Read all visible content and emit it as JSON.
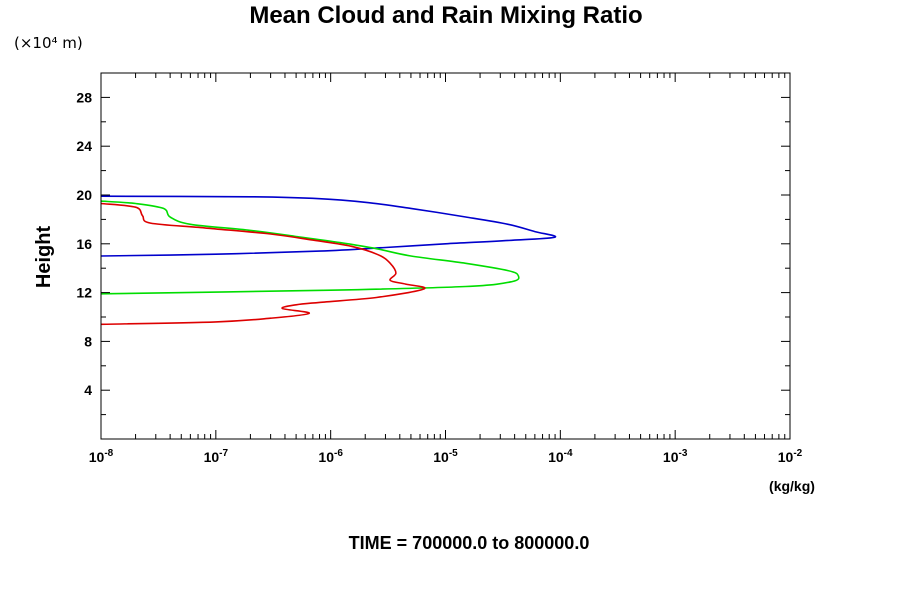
{
  "chart_data": {
    "type": "line",
    "title": "Mean Cloud and Rain Mixing Ratio",
    "y_scale_note": "(×10⁴ m)",
    "ylabel": "Height",
    "xlabel": "(kg/kg)",
    "time_label": "TIME = 700000.0 to 800000.0",
    "x_scale": "log",
    "xlim": [
      1e-08,
      0.01
    ],
    "ylim": [
      0,
      30
    ],
    "x_ticks": [
      {
        "value": 1e-08,
        "base": "10",
        "exp": "-8"
      },
      {
        "value": 1e-07,
        "base": "10",
        "exp": "-7"
      },
      {
        "value": 1e-06,
        "base": "10",
        "exp": "-6"
      },
      {
        "value": 1e-05,
        "base": "10",
        "exp": "-5"
      },
      {
        "value": 0.0001,
        "base": "10",
        "exp": "-4"
      },
      {
        "value": 0.001,
        "base": "10",
        "exp": "-3"
      },
      {
        "value": 0.01,
        "base": "10",
        "exp": "-2"
      }
    ],
    "y_ticks": [
      4,
      8,
      12,
      16,
      20,
      24,
      28
    ],
    "grid": false,
    "series": [
      {
        "color": "#0000cc",
        "points": [
          [
            1e-08,
            19.9
          ],
          [
            2e-07,
            19.85
          ],
          [
            8e-07,
            19.7
          ],
          [
            2e-06,
            19.4
          ],
          [
            5e-06,
            18.9
          ],
          [
            1.5e-05,
            18.2
          ],
          [
            3.5e-05,
            17.6
          ],
          [
            6e-05,
            17.0
          ],
          [
            9e-05,
            16.55
          ],
          [
            4e-05,
            16.3
          ],
          [
            1e-05,
            16.0
          ],
          [
            3e-06,
            15.7
          ],
          [
            8e-07,
            15.4
          ],
          [
            1e-07,
            15.15
          ],
          [
            1e-08,
            15.0
          ]
        ]
      },
      {
        "color": "#00dd00",
        "points": [
          [
            1e-08,
            19.5
          ],
          [
            2e-08,
            19.3
          ],
          [
            3.5e-08,
            18.9
          ],
          [
            4e-08,
            18.2
          ],
          [
            6e-08,
            17.6
          ],
          [
            2e-07,
            17.1
          ],
          [
            5e-07,
            16.6
          ],
          [
            1.2e-06,
            16.1
          ],
          [
            2.5e-06,
            15.6
          ],
          [
            5e-06,
            15.0
          ],
          [
            1.5e-05,
            14.4
          ],
          [
            3.5e-05,
            13.8
          ],
          [
            4.3e-05,
            13.4
          ],
          [
            3.8e-05,
            12.9
          ],
          [
            1.5e-05,
            12.5
          ],
          [
            1e-06,
            12.2
          ],
          [
            1e-08,
            11.9
          ]
        ]
      },
      {
        "color": "#dd0000",
        "points": [
          [
            1e-08,
            19.3
          ],
          [
            2e-08,
            19.0
          ],
          [
            2.3e-08,
            18.3
          ],
          [
            2.7e-08,
            17.7
          ],
          [
            8e-08,
            17.3
          ],
          [
            3e-07,
            16.8
          ],
          [
            7e-07,
            16.3
          ],
          [
            1.5e-06,
            15.8
          ],
          [
            2.6e-06,
            15.1
          ],
          [
            3.3e-06,
            14.4
          ],
          [
            3.7e-06,
            13.6
          ],
          [
            3.3e-06,
            13.0
          ],
          [
            4.5e-06,
            12.7
          ],
          [
            6.5e-06,
            12.3
          ],
          [
            2.5e-06,
            11.6
          ],
          [
            8e-07,
            11.2
          ],
          [
            5e-07,
            11.0
          ],
          [
            3.8e-07,
            10.7
          ],
          [
            6.5e-07,
            10.3
          ],
          [
            3e-07,
            9.9
          ],
          [
            1e-07,
            9.6
          ],
          [
            1e-08,
            9.4
          ]
        ]
      }
    ]
  }
}
